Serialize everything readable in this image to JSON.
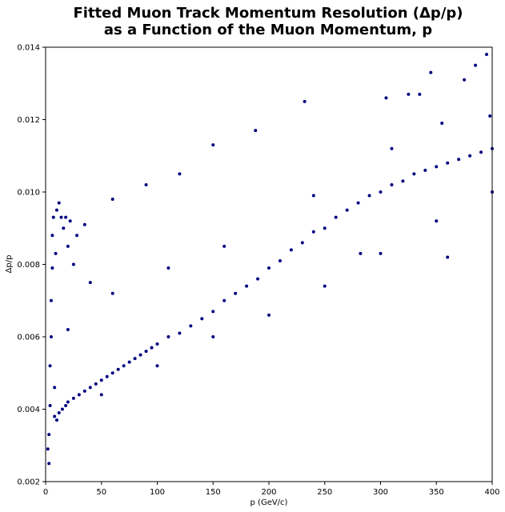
{
  "chart_data": {
    "type": "scatter",
    "title_line1": "Fitted Muon Track Momentum Resolution (Δp/p)",
    "title_line2": "as a Function of the Muon Momentum, p",
    "xlabel": "p (GeV/c)",
    "ylabel": "Δp/p",
    "xlim": [
      0,
      400
    ],
    "ylim": [
      0.002,
      0.014
    ],
    "xticks": [
      0,
      50,
      100,
      150,
      200,
      250,
      300,
      350,
      400
    ],
    "yticks": [
      0.002,
      0.004,
      0.006,
      0.008,
      0.01,
      0.012,
      0.014
    ],
    "xtick_labels": [
      "0",
      "50",
      "100",
      "150",
      "200",
      "250",
      "300",
      "350",
      "400"
    ],
    "ytick_labels": [
      "0.002",
      "0.004",
      "0.006",
      "0.008",
      "0.010",
      "0.012",
      "0.014"
    ],
    "grid": false,
    "marker_color": "#000080",
    "series": [
      {
        "values": [
          [
            2,
            0.0029
          ],
          [
            3,
            0.0025
          ],
          [
            3,
            0.0033
          ],
          [
            4,
            0.0041
          ],
          [
            4,
            0.0052
          ],
          [
            5,
            0.006
          ],
          [
            5,
            0.007
          ],
          [
            6,
            0.0079
          ],
          [
            6,
            0.0088
          ],
          [
            7,
            0.0093
          ],
          [
            8,
            0.0046
          ],
          [
            9,
            0.0083
          ],
          [
            10,
            0.0095
          ],
          [
            12,
            0.0097
          ],
          [
            14,
            0.0093
          ],
          [
            16,
            0.009
          ],
          [
            18,
            0.0093
          ],
          [
            20,
            0.0085
          ],
          [
            22,
            0.0092
          ],
          [
            25,
            0.008
          ],
          [
            28,
            0.0088
          ],
          [
            8,
            0.0038
          ],
          [
            10,
            0.0037
          ],
          [
            12,
            0.0039
          ],
          [
            15,
            0.004
          ],
          [
            18,
            0.0041
          ],
          [
            20,
            0.0042
          ],
          [
            25,
            0.0043
          ],
          [
            30,
            0.0044
          ],
          [
            35,
            0.0045
          ],
          [
            40,
            0.0046
          ],
          [
            45,
            0.0047
          ],
          [
            50,
            0.0048
          ],
          [
            55,
            0.0049
          ],
          [
            60,
            0.005
          ],
          [
            65,
            0.0051
          ],
          [
            70,
            0.0052
          ],
          [
            75,
            0.0053
          ],
          [
            80,
            0.0054
          ],
          [
            85,
            0.0055
          ],
          [
            90,
            0.0056
          ],
          [
            95,
            0.0057
          ],
          [
            100,
            0.0058
          ],
          [
            110,
            0.006
          ],
          [
            120,
            0.0061
          ],
          [
            130,
            0.0063
          ],
          [
            140,
            0.0065
          ],
          [
            150,
            0.0067
          ],
          [
            160,
            0.007
          ],
          [
            170,
            0.0072
          ],
          [
            180,
            0.0074
          ],
          [
            190,
            0.0076
          ],
          [
            200,
            0.0079
          ],
          [
            210,
            0.0081
          ],
          [
            220,
            0.0084
          ],
          [
            230,
            0.0086
          ],
          [
            240,
            0.0089
          ],
          [
            250,
            0.009
          ],
          [
            260,
            0.0093
          ],
          [
            270,
            0.0095
          ],
          [
            280,
            0.0097
          ],
          [
            290,
            0.0099
          ],
          [
            300,
            0.01
          ],
          [
            310,
            0.0102
          ],
          [
            320,
            0.0103
          ],
          [
            330,
            0.0105
          ],
          [
            340,
            0.0106
          ],
          [
            350,
            0.0107
          ],
          [
            360,
            0.0108
          ],
          [
            370,
            0.0109
          ],
          [
            380,
            0.011
          ],
          [
            390,
            0.0111
          ],
          [
            400,
            0.0112
          ],
          [
            50,
            0.0044
          ],
          [
            100,
            0.0052
          ],
          [
            150,
            0.006
          ],
          [
            200,
            0.0066
          ],
          [
            250,
            0.0074
          ],
          [
            300,
            0.0083
          ],
          [
            350,
            0.0092
          ],
          [
            400,
            0.01
          ],
          [
            395,
            0.0138
          ],
          [
            385,
            0.0135
          ],
          [
            375,
            0.0131
          ],
          [
            345,
            0.0133
          ],
          [
            335,
            0.0127
          ],
          [
            325,
            0.0127
          ],
          [
            305,
            0.0126
          ],
          [
            232,
            0.0125
          ],
          [
            188,
            0.0117
          ],
          [
            150,
            0.0113
          ],
          [
            120,
            0.0105
          ],
          [
            90,
            0.0102
          ],
          [
            60,
            0.0098
          ],
          [
            35,
            0.0091
          ],
          [
            360,
            0.0082
          ],
          [
            282,
            0.0083
          ],
          [
            60,
            0.0072
          ],
          [
            20,
            0.0062
          ],
          [
            40,
            0.0075
          ],
          [
            110,
            0.0079
          ],
          [
            160,
            0.0085
          ],
          [
            240,
            0.0099
          ],
          [
            310,
            0.0112
          ],
          [
            355,
            0.0119
          ],
          [
            398,
            0.0121
          ]
        ]
      }
    ]
  }
}
